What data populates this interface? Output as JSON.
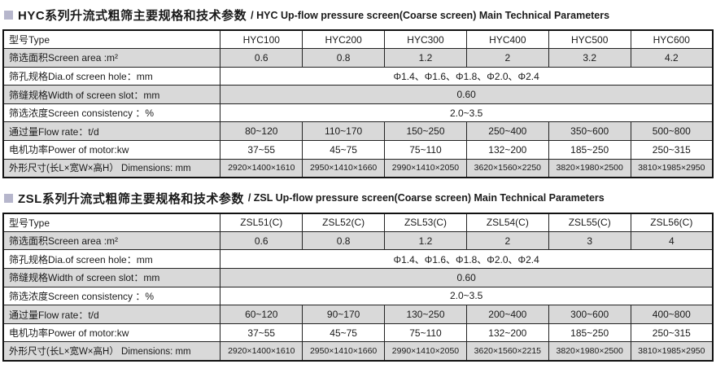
{
  "page": {
    "bullet_color": "#b6b6cc",
    "stripe_color": "#d9d9d9"
  },
  "sections": [
    {
      "title_zh": "HYC系列升流式粗筛主要规格和技术参数",
      "title_en": "/ HYC Up-flow pressure screen(Coarse screen) Main Technical Parameters",
      "table": {
        "rows": [
          {
            "label": "型号Type",
            "cells": [
              "HYC100",
              "HYC200",
              "HYC300",
              "HYC400",
              "HYC500",
              "HYC600"
            ]
          },
          {
            "label": "筛选面积Screen area :m²",
            "cells": [
              "0.6",
              "0.8",
              "1.2",
              "2",
              "3.2",
              "4.2"
            ]
          },
          {
            "label": "筛孔规格Dia.of screen hole：mm",
            "span": "Φ1.4、Φ1.6、Φ1.8、Φ2.0、Φ2.4"
          },
          {
            "label": "筛缝规格Width of screen slot：mm",
            "span": "0.60"
          },
          {
            "label": "筛选浓度Screen consistency ：%",
            "span": "2.0~3.5"
          },
          {
            "label": "通过量Flow rate：t/d",
            "cells": [
              "80~120",
              "110~170",
              "150~250",
              "250~400",
              "350~600",
              "500~800"
            ]
          },
          {
            "label": "电机功率Power of motor:kw",
            "cells": [
              "37~55",
              "45~75",
              "75~110",
              "132~200",
              "185~250",
              "250~315"
            ]
          },
          {
            "label": "外形尺寸(长L×宽W×高H） Dimensions: mm",
            "cells": [
              "2920×1400×1610",
              "2950×1410×1660",
              "2990×1410×2050",
              "3620×1560×2250",
              "3820×1980×2500",
              "3810×1985×2950"
            ]
          }
        ]
      }
    },
    {
      "title_zh": "ZSL系列升流式粗筛主要规格和技术参数",
      "title_en": "/ ZSL Up-flow pressure screen(Coarse screen) Main Technical Parameters",
      "table": {
        "rows": [
          {
            "label": "型号Type",
            "cells": [
              "ZSL51(C)",
              "ZSL52(C)",
              "ZSL53(C)",
              "ZSL54(C)",
              "ZSL55(C)",
              "ZSL56(C)"
            ]
          },
          {
            "label": "筛选面积Screen area :m²",
            "cells": [
              "0.6",
              "0.8",
              "1.2",
              "2",
              "3",
              "4"
            ]
          },
          {
            "label": "筛孔规格Dia.of screen hole：mm",
            "span": "Φ1.4、Φ1.6、Φ1.8、Φ2.0、Φ2.4"
          },
          {
            "label": "筛缝规格Width of screen slot：mm",
            "span": "0.60"
          },
          {
            "label": "筛选浓度Screen consistency ：%",
            "span": "2.0~3.5"
          },
          {
            "label": "通过量Flow rate：t/d",
            "cells": [
              "60~120",
              "90~170",
              "130~250",
              "200~400",
              "300~600",
              "400~800"
            ]
          },
          {
            "label": "电机功率Power of motor:kw",
            "cells": [
              "37~55",
              "45~75",
              "75~110",
              "132~200",
              "185~250",
              "250~315"
            ]
          },
          {
            "label": "外形尺寸(长L×宽W×高H） Dimensions: mm",
            "cells": [
              "2920×1400×1610",
              "2950×1410×1660",
              "2990×1410×2050",
              "3620×1560×2215",
              "3820×1980×2500",
              "3810×1985×2950"
            ]
          }
        ]
      }
    }
  ]
}
